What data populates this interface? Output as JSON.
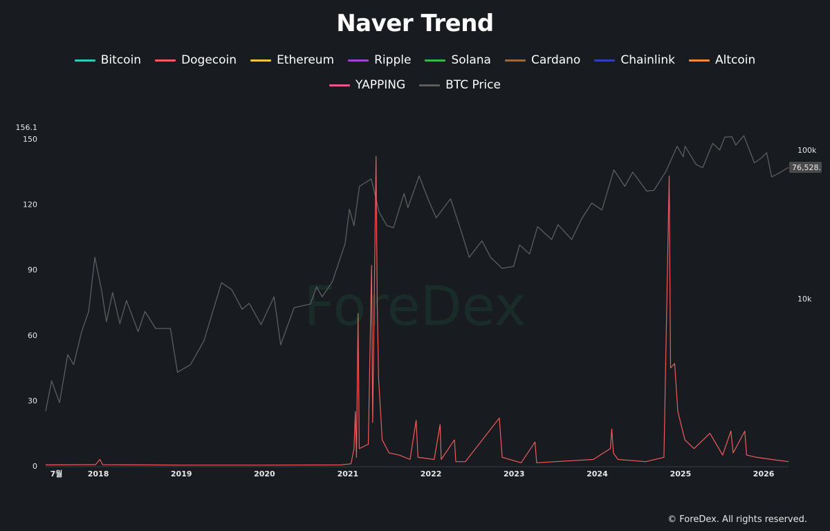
{
  "footer": "© ForeDex. All rights reserved.",
  "watermark": "ForeDex",
  "chart_data": {
    "type": "line",
    "title": "Naver Trend",
    "legend_position": "top-center",
    "grid": false,
    "legend": [
      {
        "name": "Bitcoin",
        "color": "#2ec9c0"
      },
      {
        "name": "Dogecoin",
        "color": "#f25c5c"
      },
      {
        "name": "Ethereum",
        "color": "#f5c542"
      },
      {
        "name": "Ripple",
        "color": "#a047c9"
      },
      {
        "name": "Solana",
        "color": "#3bb54a"
      },
      {
        "name": "Cardano",
        "color": "#9c6a3e"
      },
      {
        "name": "Chainlink",
        "color": "#2a44b8"
      },
      {
        "name": "Altcoin",
        "color": "#f08a3c"
      },
      {
        "name": "YAPPING",
        "color": "#e8588f"
      },
      {
        "name": "BTC Price",
        "color": "#5e5e5e"
      }
    ],
    "left_axis": {
      "min": 0,
      "max": 150,
      "ticks": [
        0,
        30,
        60,
        90,
        120,
        150
      ],
      "top_label": "156.1"
    },
    "right_axis": {
      "scale": "log",
      "ticks": [
        {
          "value": 10000,
          "label": "10k"
        },
        {
          "value": 100000,
          "label": "100k"
        }
      ],
      "last_value": 76528,
      "last_value_label": "76,528."
    },
    "x_axis": {
      "range": [
        "2017-05-15",
        "2026-04-20"
      ],
      "ticks": [
        {
          "date": "2017-07-01",
          "label": "7월"
        },
        {
          "date": "2018-01-01",
          "label": "2018"
        },
        {
          "date": "2019-01-01",
          "label": "2019"
        },
        {
          "date": "2020-01-01",
          "label": "2020"
        },
        {
          "date": "2021-01-01",
          "label": "2021"
        },
        {
          "date": "2022-01-01",
          "label": "2022"
        },
        {
          "date": "2023-01-01",
          "label": "2023"
        },
        {
          "date": "2024-01-01",
          "label": "2024"
        },
        {
          "date": "2025-01-01",
          "label": "2025"
        },
        {
          "date": "2026-01-01",
          "label": "2026"
        }
      ]
    },
    "series": [
      {
        "name": "BTC Price",
        "axis": "right",
        "color": "#5e5e5e",
        "points": [
          [
            "2017-05-15",
            1750
          ],
          [
            "2017-06-10",
            2800
          ],
          [
            "2017-07-15",
            2000
          ],
          [
            "2017-08-20",
            4200
          ],
          [
            "2017-09-15",
            3600
          ],
          [
            "2017-10-20",
            6000
          ],
          [
            "2017-11-20",
            8200
          ],
          [
            "2017-12-17",
            19000
          ],
          [
            "2018-01-15",
            11500
          ],
          [
            "2018-02-06",
            7000
          ],
          [
            "2018-03-05",
            11000
          ],
          [
            "2018-04-06",
            6800
          ],
          [
            "2018-05-05",
            9700
          ],
          [
            "2018-06-25",
            6000
          ],
          [
            "2018-07-25",
            8200
          ],
          [
            "2018-09-10",
            6300
          ],
          [
            "2018-11-14",
            6300
          ],
          [
            "2018-12-15",
            3200
          ],
          [
            "2019-02-10",
            3600
          ],
          [
            "2019-04-10",
            5200
          ],
          [
            "2019-06-26",
            12800
          ],
          [
            "2019-08-10",
            11500
          ],
          [
            "2019-09-25",
            8500
          ],
          [
            "2019-10-26",
            9300
          ],
          [
            "2019-12-17",
            6700
          ],
          [
            "2020-02-12",
            10300
          ],
          [
            "2020-03-12",
            4900
          ],
          [
            "2020-05-10",
            8700
          ],
          [
            "2020-07-20",
            9200
          ],
          [
            "2020-08-17",
            12000
          ],
          [
            "2020-09-10",
            10300
          ],
          [
            "2020-10-25",
            13000
          ],
          [
            "2020-12-20",
            23500
          ],
          [
            "2021-01-08",
            40000
          ],
          [
            "2021-01-28",
            31000
          ],
          [
            "2021-02-21",
            57000
          ],
          [
            "2021-04-14",
            64000
          ],
          [
            "2021-05-19",
            38000
          ],
          [
            "2021-06-22",
            31000
          ],
          [
            "2021-07-20",
            30000
          ],
          [
            "2021-09-05",
            51000
          ],
          [
            "2021-09-22",
            41000
          ],
          [
            "2021-11-10",
            67000
          ],
          [
            "2021-12-20",
            46500
          ],
          [
            "2022-01-24",
            35000
          ],
          [
            "2022-03-28",
            47000
          ],
          [
            "2022-05-12",
            29000
          ],
          [
            "2022-06-18",
            19000
          ],
          [
            "2022-08-13",
            24500
          ],
          [
            "2022-09-20",
            19000
          ],
          [
            "2022-11-09",
            16000
          ],
          [
            "2022-12-30",
            16500
          ],
          [
            "2023-01-25",
            23000
          ],
          [
            "2023-03-10",
            20000
          ],
          [
            "2023-04-14",
            30500
          ],
          [
            "2023-06-15",
            25000
          ],
          [
            "2023-07-13",
            31500
          ],
          [
            "2023-09-11",
            25000
          ],
          [
            "2023-10-25",
            34500
          ],
          [
            "2023-12-08",
            44000
          ],
          [
            "2024-01-22",
            39500
          ],
          [
            "2024-03-14",
            73500
          ],
          [
            "2024-05-01",
            57000
          ],
          [
            "2024-06-05",
            71000
          ],
          [
            "2024-08-05",
            53000
          ],
          [
            "2024-09-06",
            53500
          ],
          [
            "2024-10-29",
            72000
          ],
          [
            "2024-12-17",
            106000
          ],
          [
            "2025-01-13",
            90000
          ],
          [
            "2025-01-21",
            106000
          ],
          [
            "2025-03-10",
            80000
          ],
          [
            "2025-04-08",
            76000
          ],
          [
            "2025-05-22",
            111000
          ],
          [
            "2025-06-22",
            100000
          ],
          [
            "2025-07-14",
            122000
          ],
          [
            "2025-08-14",
            123000
          ],
          [
            "2025-09-01",
            108000
          ],
          [
            "2025-10-06",
            125000
          ],
          [
            "2025-11-21",
            82000
          ],
          [
            "2025-12-20",
            88000
          ],
          [
            "2026-01-14",
            96000
          ],
          [
            "2026-02-05",
            66000
          ],
          [
            "2026-03-10",
            70000
          ],
          [
            "2026-04-20",
            76528
          ]
        ]
      },
      {
        "name": "Dogecoin",
        "axis": "left",
        "color": "#f25c5c",
        "points": [
          [
            "2017-05-15",
            0.5
          ],
          [
            "2017-12-20",
            0.6
          ],
          [
            "2018-01-08",
            3
          ],
          [
            "2018-01-20",
            0.6
          ],
          [
            "2019-01-01",
            0.4
          ],
          [
            "2020-01-01",
            0.4
          ],
          [
            "2020-12-01",
            0.5
          ],
          [
            "2021-01-15",
            1
          ],
          [
            "2021-01-28",
            8
          ],
          [
            "2021-02-03",
            25
          ],
          [
            "2021-02-08",
            4
          ],
          [
            "2021-02-15",
            70
          ],
          [
            "2021-02-20",
            8
          ],
          [
            "2021-04-01",
            10
          ],
          [
            "2021-04-15",
            92
          ],
          [
            "2021-04-20",
            20
          ],
          [
            "2021-05-05",
            142
          ],
          [
            "2021-05-10",
            75
          ],
          [
            "2021-05-16",
            40
          ],
          [
            "2021-06-01",
            12
          ],
          [
            "2021-07-01",
            6
          ],
          [
            "2021-08-15",
            5
          ],
          [
            "2021-10-01",
            3
          ],
          [
            "2021-10-28",
            21
          ],
          [
            "2021-11-05",
            4
          ],
          [
            "2022-01-15",
            3
          ],
          [
            "2022-02-10",
            19
          ],
          [
            "2022-02-15",
            3
          ],
          [
            "2022-04-14",
            12
          ],
          [
            "2022-04-20",
            2
          ],
          [
            "2022-06-01",
            2
          ],
          [
            "2022-10-28",
            22
          ],
          [
            "2022-11-10",
            4
          ],
          [
            "2023-02-01",
            1.5
          ],
          [
            "2023-04-03",
            11
          ],
          [
            "2023-04-10",
            1.5
          ],
          [
            "2023-07-01",
            2
          ],
          [
            "2023-12-15",
            3
          ],
          [
            "2024-02-28",
            8
          ],
          [
            "2024-03-05",
            17
          ],
          [
            "2024-03-12",
            6
          ],
          [
            "2024-04-01",
            3
          ],
          [
            "2024-08-01",
            2
          ],
          [
            "2024-10-20",
            4
          ],
          [
            "2024-11-12",
            133
          ],
          [
            "2024-11-18",
            45
          ],
          [
            "2024-12-06",
            47
          ],
          [
            "2024-12-20",
            25
          ],
          [
            "2025-01-20",
            12
          ],
          [
            "2025-03-01",
            8
          ],
          [
            "2025-05-10",
            15
          ],
          [
            "2025-07-05",
            5
          ],
          [
            "2025-08-10",
            16
          ],
          [
            "2025-08-20",
            6
          ],
          [
            "2025-10-10",
            16
          ],
          [
            "2025-10-18",
            5
          ],
          [
            "2025-12-01",
            4
          ],
          [
            "2026-02-05",
            3
          ],
          [
            "2026-04-20",
            2
          ]
        ]
      }
    ]
  }
}
